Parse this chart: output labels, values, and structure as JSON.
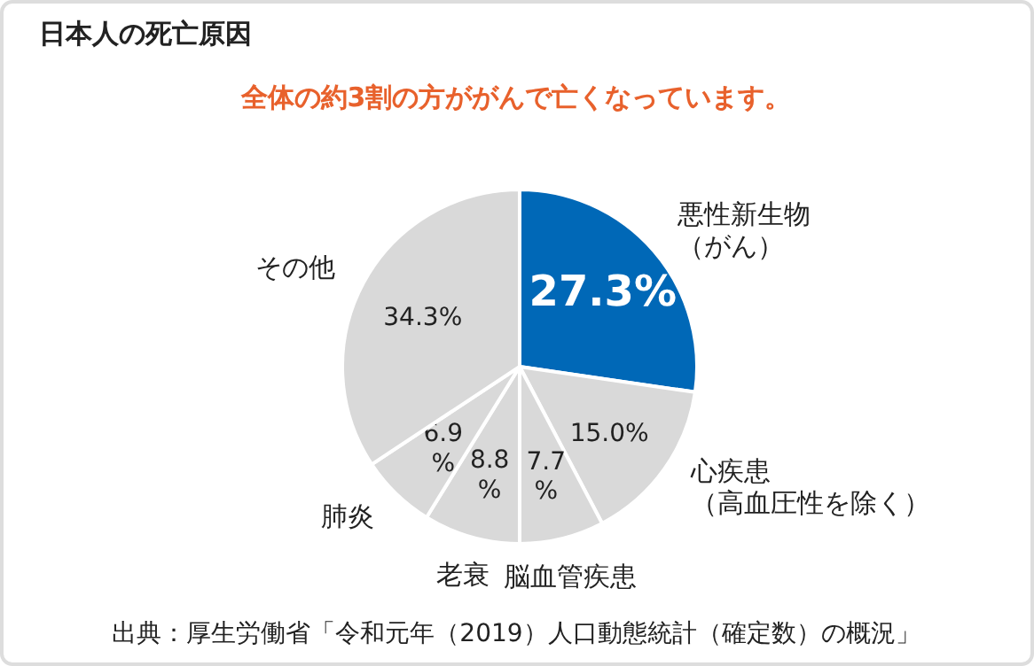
{
  "chart_data": {
    "type": "pie",
    "title": "日本人の死亡原因",
    "subtitle": "全体の約3割の方ががんで亡くなっています。",
    "categories": [
      "悪性新生物（がん）",
      "心疾患（高血圧性を除く）",
      "脳血管疾患",
      "老衰",
      "肺炎",
      "その他"
    ],
    "value_labels": [
      "27.3%",
      "15.0%",
      "7.7%",
      "8.8%",
      "6.9%",
      "34.3%"
    ],
    "values": [
      27.3,
      15.0,
      7.7,
      8.8,
      6.9,
      34.3
    ],
    "colors": [
      "#0068b7",
      "#d9d9d9",
      "#d9d9d9",
      "#d9d9d9",
      "#d9d9d9",
      "#d9d9d9"
    ],
    "annotations": [
      "出典：厚生労働省「令和元年（2019）人口動態統計（確定数）の概況」"
    ]
  }
}
